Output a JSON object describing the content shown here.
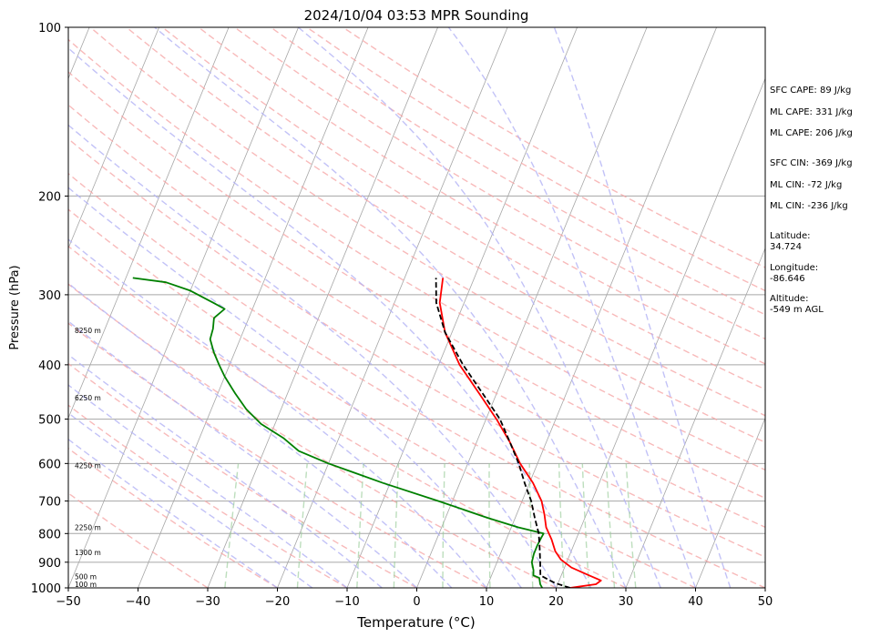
{
  "chart_data": {
    "type": "skew-t",
    "title": "2024/10/04 03:53 MPR Sounding",
    "xlabel": "Temperature (°C)",
    "ylabel": "Pressure (hPa)",
    "xlim": [
      -50,
      50
    ],
    "ylim": [
      1000,
      100
    ],
    "y_scale": "log",
    "x_ticks": [
      "−50",
      "−40",
      "−30",
      "−20",
      "−10",
      "0",
      "10",
      "20",
      "30",
      "40",
      "50"
    ],
    "y_ticks": [
      "100",
      "200",
      "300",
      "400",
      "500",
      "600",
      "700",
      "800",
      "900",
      "1000"
    ],
    "grid": true,
    "series": [
      {
        "role": "temperature",
        "color": "#ff0000",
        "points": [
          [
            1000,
            22
          ],
          [
            985,
            25.5
          ],
          [
            970,
            26
          ],
          [
            950,
            24
          ],
          [
            920,
            21
          ],
          [
            890,
            19
          ],
          [
            860,
            17.7
          ],
          [
            820,
            16.5
          ],
          [
            780,
            15
          ],
          [
            740,
            14
          ],
          [
            700,
            12.8
          ],
          [
            650,
            10.5
          ],
          [
            600,
            7.5
          ],
          [
            550,
            4.8
          ],
          [
            500,
            1.5
          ],
          [
            450,
            -2.5
          ],
          [
            400,
            -7
          ],
          [
            350,
            -11
          ],
          [
            310,
            -13.5
          ],
          [
            280,
            -14.5
          ]
        ]
      },
      {
        "role": "dewpoint",
        "color": "#008000",
        "points": [
          [
            1000,
            18
          ],
          [
            985,
            17.5
          ],
          [
            960,
            17
          ],
          [
            950,
            16
          ],
          [
            930,
            15.7
          ],
          [
            900,
            15
          ],
          [
            870,
            14.8
          ],
          [
            840,
            14.8
          ],
          [
            815,
            14.9
          ],
          [
            800,
            15
          ],
          [
            780,
            11
          ],
          [
            750,
            6
          ],
          [
            700,
            -2
          ],
          [
            650,
            -11
          ],
          [
            600,
            -20
          ],
          [
            570,
            -25
          ],
          [
            540,
            -28
          ],
          [
            510,
            -32
          ],
          [
            480,
            -35
          ],
          [
            450,
            -37.5
          ],
          [
            420,
            -40
          ],
          [
            400,
            -41.5
          ],
          [
            380,
            -43
          ],
          [
            360,
            -44.3
          ],
          [
            345,
            -44.5
          ],
          [
            330,
            -45
          ],
          [
            318,
            -44
          ],
          [
            310,
            -46
          ],
          [
            295,
            -50
          ],
          [
            285,
            -54
          ],
          [
            280,
            -59
          ]
        ]
      },
      {
        "role": "parcel",
        "color": "#000000",
        "points": [
          [
            1000,
            22
          ],
          [
            980,
            19.5
          ],
          [
            950,
            17
          ],
          [
            900,
            16.2
          ],
          [
            850,
            15.3
          ],
          [
            800,
            14.3
          ],
          [
            750,
            12.8
          ],
          [
            700,
            11.3
          ],
          [
            650,
            9.3
          ],
          [
            600,
            7.3
          ],
          [
            550,
            4.8
          ],
          [
            500,
            2
          ],
          [
            450,
            -2
          ],
          [
            400,
            -6.5
          ],
          [
            350,
            -11
          ],
          [
            310,
            -14
          ],
          [
            280,
            -15.5
          ]
        ]
      }
    ],
    "height_labels": [
      {
        "text": "100 m",
        "pressure": 1000
      },
      {
        "text": "500 m",
        "pressure": 955
      },
      {
        "text": "1300 m",
        "pressure": 865
      },
      {
        "text": "2250 m",
        "pressure": 780
      },
      {
        "text": "4250 m",
        "pressure": 605
      },
      {
        "text": "6250 m",
        "pressure": 458
      },
      {
        "text": "8250 m",
        "pressure": 347
      }
    ],
    "annotations": {
      "sfc_cape": "SFC CAPE: 89 J/kg",
      "ml_cape_1": "ML CAPE: 331 J/kg",
      "ml_cape_2": "ML CAPE: 206 J/kg",
      "sfc_cin": "SFC CIN: -369 J/kg",
      "ml_cin_1": "ML CIN: -72 J/kg",
      "ml_cin_2": "ML CIN: -236 J/kg",
      "latitude_label": "Latitude:",
      "latitude_value": "34.724",
      "longitude_label": "Longitude:",
      "longitude_value": "-86.646",
      "altitude_label": "Altitude:",
      "altitude_value": "-549 m AGL"
    },
    "colors": {
      "isotherm": "#a6a6a6",
      "isobar": "#a6a6a6",
      "dry_adiabat": "#f5a3a3",
      "moist_adiabat": "#b3b3f5",
      "mixing_ratio": "#99cc99"
    }
  }
}
